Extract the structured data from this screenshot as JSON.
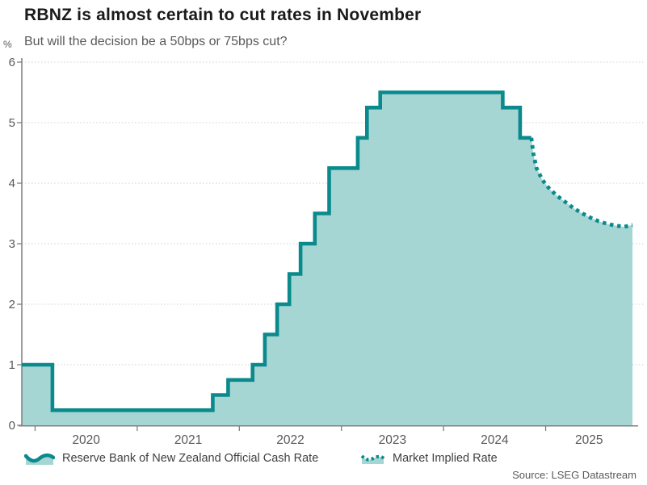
{
  "header": {
    "title": "RBNZ is almost certain to cut rates in November",
    "subtitle": "But will the decision be a 50bps or 75bps cut?"
  },
  "axes": {
    "y_unit_label": "%"
  },
  "legend": {
    "ocr_label": "Reserve Bank of New Zealand Official Cash Rate",
    "implied_label": "Market Implied Rate"
  },
  "footer": {
    "source": "Source: LSEG Datastream"
  },
  "colors": {
    "teal_line": "#0a8a8c",
    "area_fill": "#a6d6d4",
    "grid": "#dcdcdc",
    "axis": "#7f7f7f",
    "title_text": "#1a1a1a",
    "muted_text": "#595959"
  },
  "chart_data": {
    "type": "area",
    "title": "RBNZ is almost certain to cut rates in November",
    "subtitle": "But will the decision be a 50bps or 75bps cut?",
    "ylabel": "%",
    "xlabel": "",
    "ylim": [
      0,
      6
    ],
    "xlim": [
      2019.87,
      2025.85
    ],
    "y_ticks": [
      0,
      1,
      2,
      3,
      4,
      5,
      6
    ],
    "x_ticks_years": [
      2020,
      2021,
      2022,
      2023,
      2024,
      2025
    ],
    "grid": "horizontal-dotted",
    "legend_position": "bottom",
    "series": [
      {
        "name": "Reserve Bank of New Zealand Official Cash Rate",
        "style": "step-solid-area",
        "unit": "%",
        "points": [
          [
            2019.87,
            1.0
          ],
          [
            2020.17,
            0.25
          ],
          [
            2021.74,
            0.5
          ],
          [
            2021.89,
            0.75
          ],
          [
            2022.13,
            1.0
          ],
          [
            2022.25,
            1.5
          ],
          [
            2022.37,
            2.0
          ],
          [
            2022.49,
            2.5
          ],
          [
            2022.6,
            3.0
          ],
          [
            2022.74,
            3.5
          ],
          [
            2022.88,
            4.25
          ],
          [
            2023.16,
            4.75
          ],
          [
            2023.25,
            5.25
          ],
          [
            2023.38,
            5.5
          ],
          [
            2024.58,
            5.25
          ],
          [
            2024.75,
            4.75
          ]
        ],
        "end_x": 2024.86
      },
      {
        "name": "Market Implied Rate",
        "style": "dotted-line",
        "unit": "%",
        "points": [
          [
            2024.86,
            4.75
          ],
          [
            2024.88,
            4.48
          ],
          [
            2024.91,
            4.25
          ],
          [
            2024.97,
            4.05
          ],
          [
            2025.04,
            3.9
          ],
          [
            2025.12,
            3.78
          ],
          [
            2025.2,
            3.68
          ],
          [
            2025.28,
            3.58
          ],
          [
            2025.36,
            3.5
          ],
          [
            2025.44,
            3.43
          ],
          [
            2025.52,
            3.37
          ],
          [
            2025.6,
            3.33
          ],
          [
            2025.68,
            3.3
          ],
          [
            2025.77,
            3.28
          ],
          [
            2025.85,
            3.31
          ]
        ]
      }
    ]
  }
}
